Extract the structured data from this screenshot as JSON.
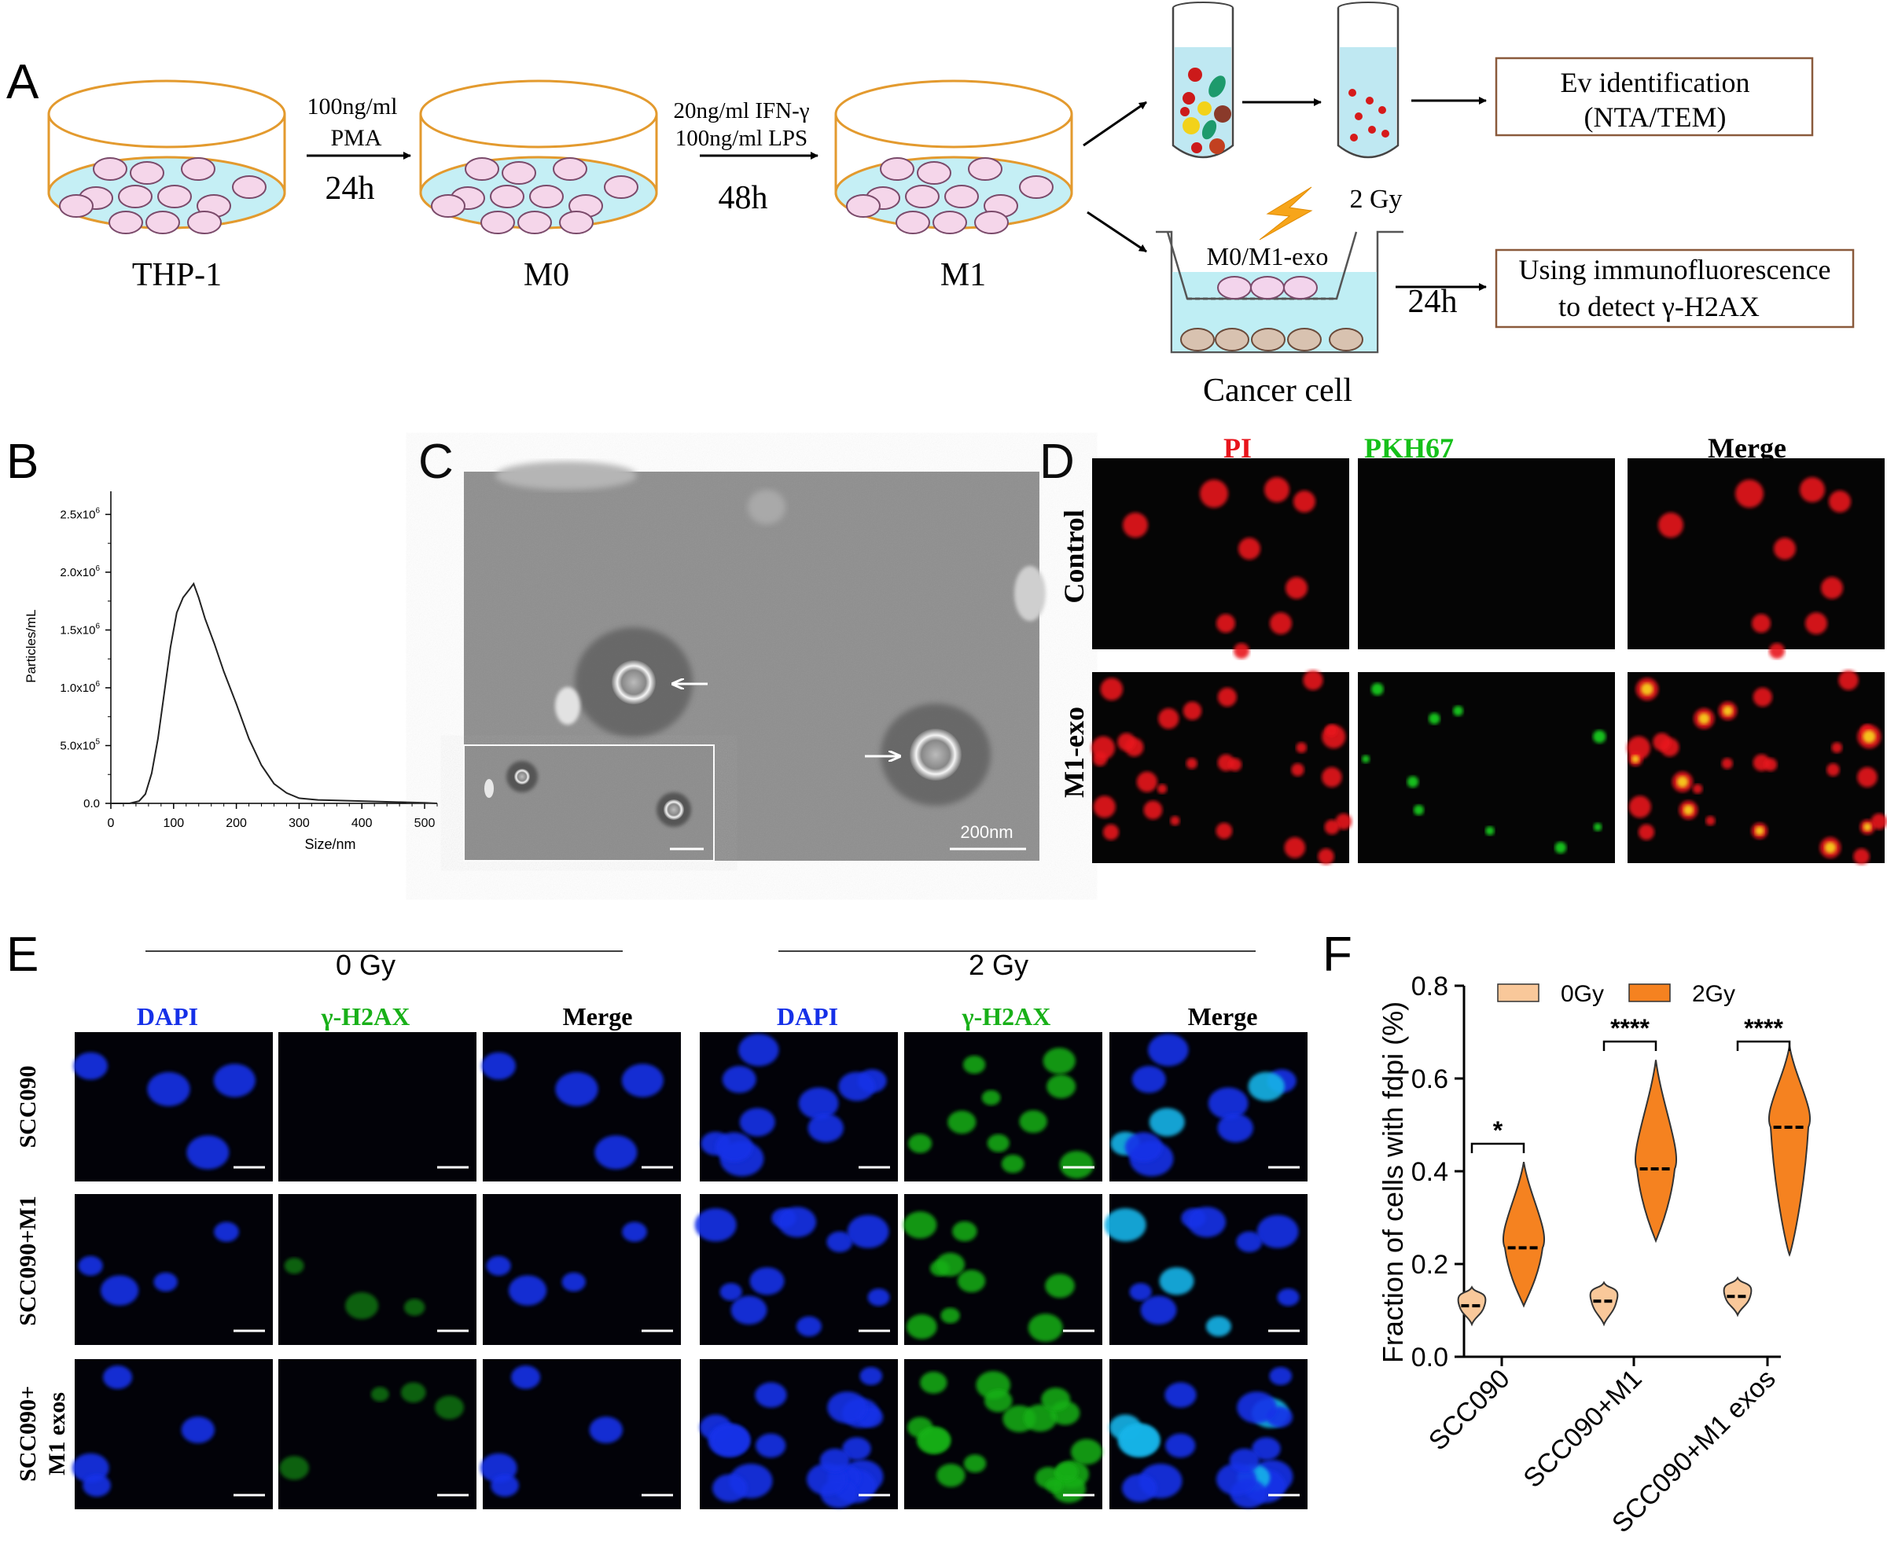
{
  "figure": {
    "panels": {
      "A": "A",
      "B": "B",
      "C": "C",
      "D": "D",
      "E": "E",
      "F": "F"
    }
  },
  "panelA": {
    "dish1_label": "THP-1",
    "dish2_label": "M0",
    "dish3_label": "M1",
    "step1_line1": "100ng/ml",
    "step1_line2": "PMA",
    "step1_time": "24h",
    "step2_line1": "20ng/ml IFN-γ",
    "step2_line2": "100ng/ml LPS",
    "step2_time": "48h",
    "ev_box_line1": "Ev identification",
    "ev_box_line2": "(NTA/TEM)",
    "irradiation": "2 Gy",
    "insert_label": "M0/M1-exo",
    "coculture_time": "24h",
    "if_box_line1": "Using immunofluorescence",
    "if_box_line2": "to detect γ-H2AX",
    "cancer_label": "Cancer cell"
  },
  "panelC": {
    "scale": "200nm"
  },
  "panelD": {
    "col_pi": "PI",
    "col_pkh": "PKH67",
    "col_merge": "Merge",
    "row_control": "Control",
    "row_m1": "M1-exo",
    "colors": {
      "pi": "#e8141c",
      "pkh": "#16c01a"
    }
  },
  "panelE": {
    "group_0gy": "0 Gy",
    "group_2gy": "2 Gy",
    "col_dapi": "DAPI",
    "col_h2ax": "γ-H2AX",
    "col_merge": "Merge",
    "row1": "SCC090",
    "row2": "SCC090+M1",
    "row3_line1": "SCC090+",
    "row3_line2": "M1 exos",
    "colors": {
      "dapi": "#1530e8",
      "h2ax": "#18b018"
    }
  },
  "chart_data": [
    {
      "type": "line",
      "panel": "B",
      "xlabel": "Size/nm",
      "ylabel": "Particles/mL",
      "xlim": [
        0,
        520
      ],
      "ylim": [
        0,
        2700000
      ],
      "x_ticks": [
        "0",
        "100",
        "200",
        "300",
        "400",
        "500"
      ],
      "y_ticks": [
        "0.0",
        "5.0x10",
        "1.0x10",
        "1.5x10",
        "2.0x10",
        "2.5x10"
      ],
      "y_tick_exponents": [
        "",
        "5",
        "6",
        "6",
        "6",
        "6"
      ],
      "y_tick_values": [
        0,
        500000,
        1000000,
        1500000,
        2000000,
        2500000
      ],
      "x": [
        0,
        30,
        45,
        55,
        65,
        75,
        85,
        95,
        105,
        115,
        125,
        132,
        140,
        150,
        165,
        180,
        200,
        220,
        240,
        260,
        280,
        300,
        330,
        360,
        400,
        450,
        500,
        520
      ],
      "y": [
        0,
        0,
        20000,
        80000,
        260000,
        560000,
        950000,
        1350000,
        1650000,
        1780000,
        1850000,
        1900000,
        1780000,
        1600000,
        1380000,
        1140000,
        860000,
        560000,
        330000,
        170000,
        90000,
        45000,
        30000,
        25000,
        20000,
        12000,
        5000,
        0
      ]
    },
    {
      "type": "violin",
      "panel": "F",
      "ylabel": "Fraction of cells with fdpi (%)",
      "ylim": [
        0,
        0.8
      ],
      "y_ticks": [
        "0.0",
        "0.2",
        "0.4",
        "0.6",
        "0.8"
      ],
      "categories": [
        "SCC090",
        "SCC090+M1",
        "SCC090+M1 exos"
      ],
      "legend": [
        "0Gy",
        "2Gy"
      ],
      "legend_position": "top",
      "colors": {
        "0Gy": "#f9c89a",
        "2Gy": "#f58220"
      },
      "series": [
        {
          "name": "0Gy",
          "median": [
            0.11,
            0.12,
            0.13
          ],
          "min": [
            0.07,
            0.07,
            0.09
          ],
          "max": [
            0.15,
            0.16,
            0.17
          ]
        },
        {
          "name": "2Gy",
          "median": [
            0.235,
            0.405,
            0.495
          ],
          "min": [
            0.11,
            0.25,
            0.22
          ],
          "max": [
            0.42,
            0.64,
            0.67
          ]
        }
      ],
      "significance": [
        "*",
        "****",
        "****"
      ]
    }
  ]
}
